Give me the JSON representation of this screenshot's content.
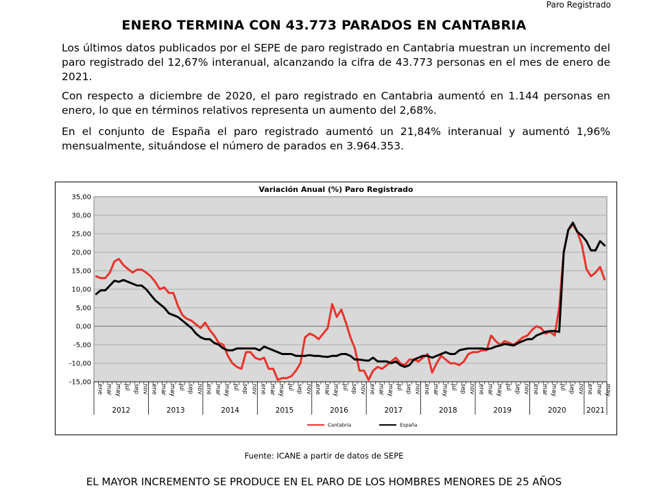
{
  "header": {
    "label": "Paro Registrado"
  },
  "title": "ENERO TERMINA CON 43.773 PARADOS EN CANTABRIA",
  "paragraphs": [
    "Los últimos datos publicados por el SEPE de paro registrado en Cantabria muestran un incremento del paro registrado del 12,67% interanual, alcanzando la cifra de 43.773 personas en el mes de enero de 2021.",
    "Con respecto a diciembre de 2020, el paro registrado en Cantabria aumentó en 1.144 personas en enero, lo que en términos relativos representa un aumento del 2,68%.",
    "En el conjunto de España el paro registrado aumentó un 21,84% interanual y aumentó 1,96% mensualmente, situándose el número de parados en 3.964.353."
  ],
  "source": "Fuente: ICANE a partir de datos de SEPE",
  "next_heading": "EL MAYOR INCREMENTO SE PRODUCE EN EL PARO DE LOS HOMBRES MENORES DE 25 AÑOS",
  "chart_data": {
    "type": "line",
    "title": "Variación Anual (%) Paro Registrado",
    "ylim": [
      -15,
      35
    ],
    "yticks": [
      "35,00",
      "30,00",
      "25,00",
      "20,00",
      "15,00",
      "10,00",
      "5,00",
      "0,00",
      "-5,00",
      "-10,00",
      "-15,00"
    ],
    "month_labels": [
      "ene",
      "mar",
      "may",
      "jul",
      "sep",
      "nov"
    ],
    "years": [
      "2012",
      "2013",
      "2014",
      "2015",
      "2016",
      "2017",
      "2018",
      "2019",
      "2020",
      "2021"
    ],
    "grid": true,
    "legend_position": "bottom",
    "colors": {
      "Cantabria": "#e8322a",
      "España": "#000000",
      "plot_background": "#d9d9d9",
      "gridline": "#9a9a9a"
    },
    "series": [
      {
        "name": "Cantabria",
        "values": [
          13.5,
          13.0,
          13.0,
          14.5,
          17.5,
          18.2,
          16.5,
          15.5,
          14.5,
          15.3,
          15.3,
          14.5,
          13.5,
          12.0,
          10.0,
          10.5,
          9.0,
          9.0,
          5.5,
          3.0,
          2.0,
          1.5,
          0.5,
          -0.5,
          1.0,
          -1.0,
          -2.5,
          -4.5,
          -5.0,
          -8.0,
          -10.0,
          -11.0,
          -11.5,
          -7.0,
          -7.0,
          -8.5,
          -9.0,
          -8.5,
          -11.5,
          -11.5,
          -14.5,
          -14.0,
          -14.0,
          -13.5,
          -12.0,
          -10.0,
          -3.0,
          -2.0,
          -2.5,
          -3.5,
          -2.0,
          -0.5,
          6.0,
          2.5,
          4.5,
          1.0,
          -3.0,
          -6.0,
          -12.0,
          -12.0,
          -14.5,
          -12.0,
          -11.0,
          -11.5,
          -10.5,
          -9.5,
          -8.5,
          -10.0,
          -10.5,
          -9.0,
          -9.0,
          -9.5,
          -8.5,
          -7.5,
          -12.5,
          -10.0,
          -8.0,
          -9.0,
          -10.0,
          -10.0,
          -10.5,
          -9.5,
          -7.5,
          -7.0,
          -7.0,
          -6.5,
          -6.5,
          -2.5,
          -4.0,
          -5.0,
          -4.0,
          -4.5,
          -5.0,
          -4.0,
          -3.0,
          -2.5,
          -1.0,
          0.0,
          -0.5,
          -2.0,
          -1.5,
          -2.5,
          5.0,
          20.0,
          26.0,
          27.5,
          25.5,
          22.0,
          15.5,
          13.5,
          14.5,
          16.0,
          12.67
        ]
      },
      {
        "name": "España",
        "values": [
          8.7,
          9.7,
          9.7,
          11.0,
          12.3,
          12.0,
          12.5,
          12.0,
          11.5,
          11.0,
          11.0,
          10.0,
          8.5,
          7.0,
          6.0,
          5.0,
          3.5,
          3.0,
          2.5,
          1.5,
          0.5,
          -0.5,
          -2.0,
          -3.0,
          -3.5,
          -3.5,
          -4.5,
          -5.0,
          -6.0,
          -6.5,
          -6.5,
          -6.0,
          -6.0,
          -6.0,
          -6.0,
          -6.0,
          -6.5,
          -5.5,
          -6.0,
          -6.5,
          -7.0,
          -7.5,
          -7.5,
          -7.5,
          -8.0,
          -8.0,
          -8.0,
          -7.8,
          -8.0,
          -8.0,
          -8.2,
          -8.3,
          -8.0,
          -8.0,
          -7.5,
          -7.5,
          -8.0,
          -9.0,
          -9.0,
          -9.2,
          -9.3,
          -8.5,
          -9.5,
          -9.5,
          -9.5,
          -10.0,
          -9.5,
          -10.5,
          -11.0,
          -10.5,
          -9.0,
          -8.5,
          -8.0,
          -8.0,
          -8.5,
          -8.0,
          -7.5,
          -7.0,
          -7.5,
          -7.5,
          -6.5,
          -6.2,
          -6.0,
          -6.0,
          -6.0,
          -6.0,
          -6.2,
          -6.0,
          -5.5,
          -5.2,
          -4.8,
          -5.0,
          -5.2,
          -4.5,
          -4.0,
          -3.5,
          -3.5,
          -2.5,
          -2.0,
          -1.5,
          -1.3,
          -1.3,
          -1.5,
          20.0,
          26.0,
          28.0,
          25.5,
          24.5,
          23.0,
          20.5,
          20.5,
          23.0,
          21.84
        ]
      }
    ]
  }
}
